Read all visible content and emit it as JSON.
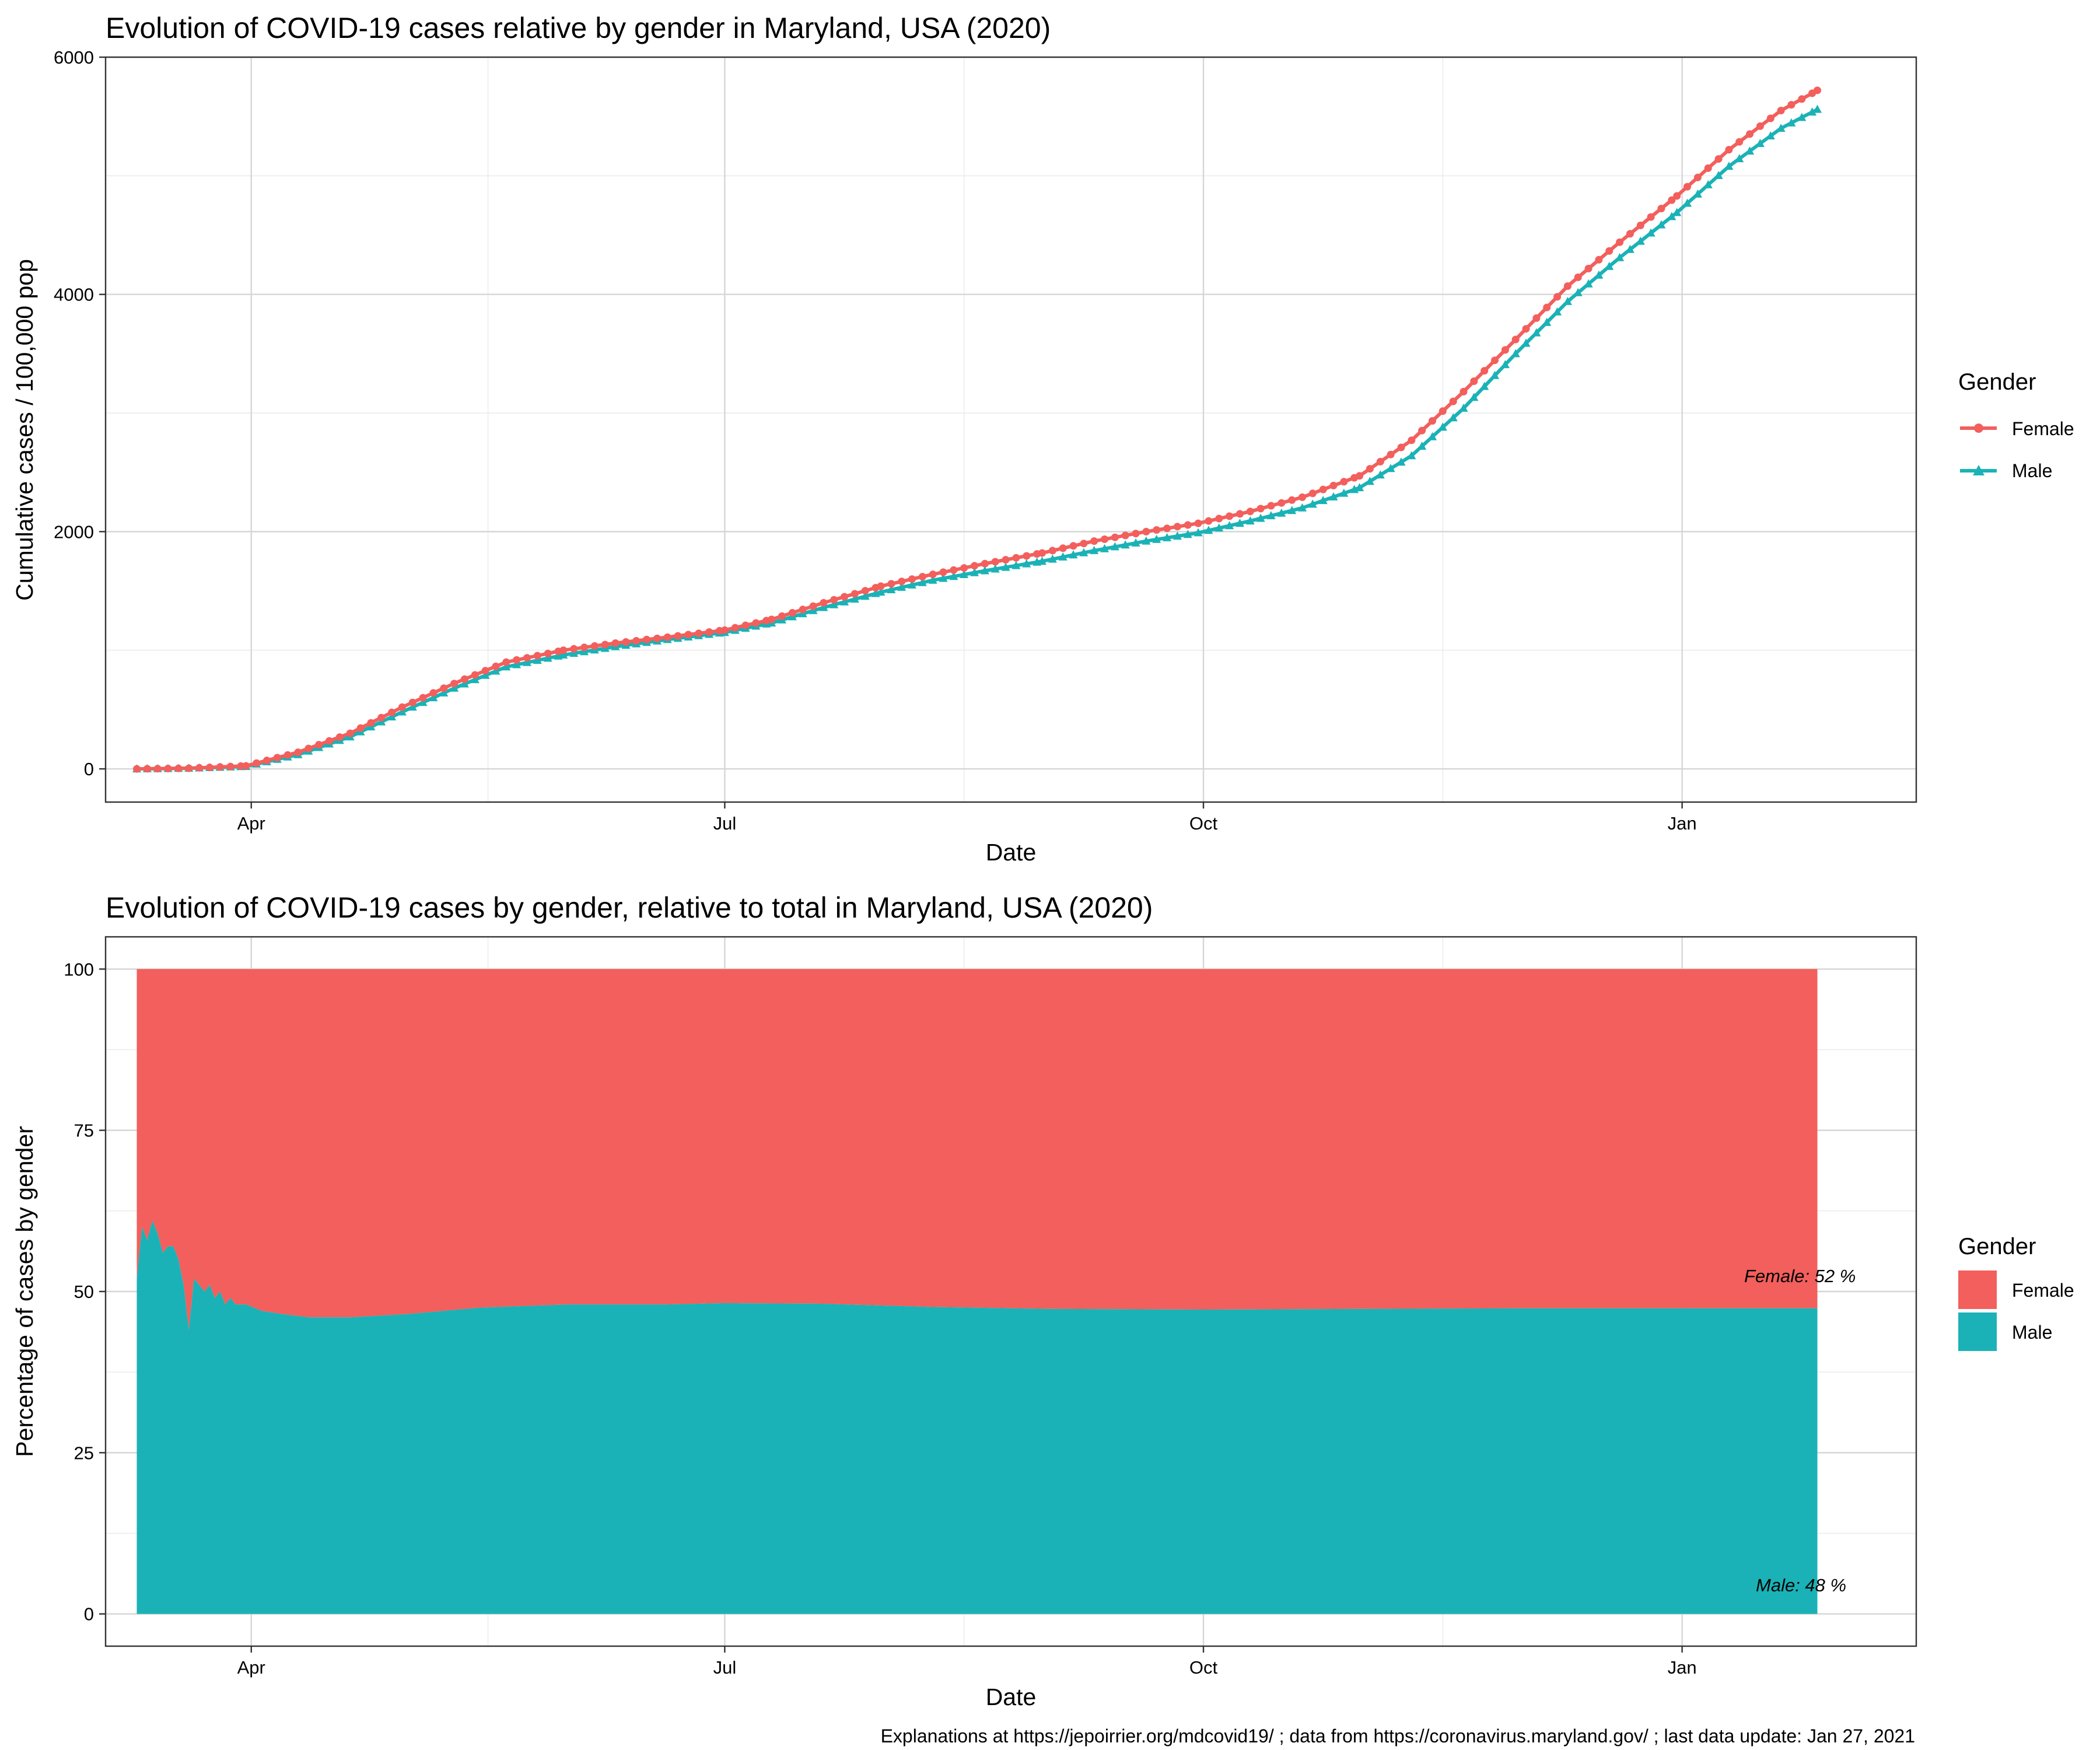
{
  "caption": "Explanations at https://jepoirrier.org/mdcovid19/ ; data from https://coronavirus.maryland.gov/ ; last data update: Jan 27, 2021",
  "colors": {
    "Female": "#F25F5C",
    "Male": "#1AB2B6"
  },
  "chart_data": [
    {
      "type": "line",
      "title": "Evolution of COVID-19 cases relative by gender in Maryland, USA (2020)",
      "xlabel": "Date",
      "ylabel": "Cumulative cases / 100,000 pop",
      "x_ticks": [
        "Apr",
        "Jul",
        "Oct",
        "Jan"
      ],
      "x_tick_dates": [
        "2020-04-01",
        "2020-07-01",
        "2020-10-01",
        "2021-01-01"
      ],
      "y_ticks": [
        "0",
        "2000",
        "4000",
        "6000"
      ],
      "xlim": [
        "2020-03-04",
        "2021-02-15"
      ],
      "ylim": [
        -280,
        6000
      ],
      "grid": true,
      "legend": {
        "title": "Gender",
        "position": "right",
        "entries": [
          "Female",
          "Male"
        ]
      },
      "markers": {
        "Female": "circle",
        "Male": "triangle"
      },
      "x": [
        "2020-03-10",
        "2020-03-20",
        "2020-03-31",
        "2020-04-10",
        "2020-04-20",
        "2020-04-30",
        "2020-05-10",
        "2020-05-20",
        "2020-05-31",
        "2020-06-10",
        "2020-06-20",
        "2020-07-01",
        "2020-07-10",
        "2020-07-20",
        "2020-07-31",
        "2020-08-10",
        "2020-08-20",
        "2020-08-31",
        "2020-09-10",
        "2020-09-20",
        "2020-09-30",
        "2020-10-10",
        "2020-10-20",
        "2020-10-31",
        "2020-11-10",
        "2020-11-20",
        "2020-11-30",
        "2020-12-10",
        "2020-12-20",
        "2020-12-31",
        "2021-01-10",
        "2021-01-20",
        "2021-01-27"
      ],
      "series": [
        {
          "name": "Female",
          "values": [
            0,
            5,
            25,
            140,
            300,
            520,
            720,
            900,
            1000,
            1060,
            1110,
            1170,
            1260,
            1400,
            1540,
            1640,
            1730,
            1820,
            1920,
            2000,
            2070,
            2170,
            2290,
            2470,
            2770,
            3180,
            3620,
            4070,
            4440,
            4830,
            5220,
            5550,
            5720
          ]
        },
        {
          "name": "Male",
          "values": [
            0,
            5,
            20,
            120,
            270,
            480,
            680,
            860,
            960,
            1030,
            1090,
            1150,
            1230,
            1360,
            1490,
            1590,
            1670,
            1750,
            1840,
            1920,
            1990,
            2090,
            2200,
            2370,
            2640,
            3040,
            3500,
            3940,
            4310,
            4690,
            5080,
            5400,
            5560
          ]
        }
      ]
    },
    {
      "type": "area",
      "stacked": true,
      "title": "Evolution of COVID-19 cases by gender, relative to total in Maryland, USA (2020)",
      "xlabel": "Date",
      "ylabel": "Percentage of cases by gender",
      "x_ticks": [
        "Apr",
        "Jul",
        "Oct",
        "Jan"
      ],
      "x_tick_dates": [
        "2020-04-01",
        "2020-07-01",
        "2020-10-01",
        "2021-01-01"
      ],
      "y_ticks": [
        "0",
        "25",
        "50",
        "75",
        "100"
      ],
      "xlim": [
        "2020-03-04",
        "2021-02-15"
      ],
      "ylim": [
        -5,
        105
      ],
      "grid": true,
      "legend": {
        "title": "Gender",
        "position": "right",
        "entries": [
          "Female",
          "Male"
        ]
      },
      "annotations": [
        "Female: 52 %",
        "Male: 48 %"
      ],
      "x": [
        "2020-03-10",
        "2020-03-11",
        "2020-03-12",
        "2020-03-13",
        "2020-03-14",
        "2020-03-15",
        "2020-03-16",
        "2020-03-17",
        "2020-03-18",
        "2020-03-19",
        "2020-03-20",
        "2020-03-21",
        "2020-03-22",
        "2020-03-23",
        "2020-03-24",
        "2020-03-25",
        "2020-03-26",
        "2020-03-27",
        "2020-03-28",
        "2020-03-29",
        "2020-03-31",
        "2020-04-03",
        "2020-04-07",
        "2020-04-12",
        "2020-04-20",
        "2020-05-01",
        "2020-05-15",
        "2020-06-01",
        "2020-06-20",
        "2020-07-01",
        "2020-07-20",
        "2020-08-10",
        "2020-09-01",
        "2020-10-01",
        "2020-11-01",
        "2020-12-01",
        "2021-01-01",
        "2021-01-27"
      ],
      "series": [
        {
          "name": "Male",
          "values": [
            52,
            60,
            58,
            61,
            59,
            56,
            57,
            57,
            55,
            51,
            44,
            52,
            51,
            50,
            51,
            49,
            50,
            48,
            49,
            48,
            48,
            47,
            46.5,
            46,
            46,
            46.5,
            47.5,
            48,
            48,
            48.2,
            48.1,
            47.6,
            47.3,
            47.2,
            47.3,
            47.4,
            47.4,
            47.4
          ]
        },
        {
          "name": "Female",
          "values": [
            48,
            40,
            42,
            39,
            41,
            44,
            43,
            43,
            45,
            49,
            56,
            48,
            49,
            50,
            49,
            51,
            50,
            52,
            51,
            52,
            52,
            53,
            53.5,
            54,
            54,
            53.5,
            52.5,
            52,
            52,
            51.8,
            51.9,
            52.4,
            52.7,
            52.8,
            52.7,
            52.6,
            52.6,
            52.6
          ]
        }
      ]
    }
  ]
}
